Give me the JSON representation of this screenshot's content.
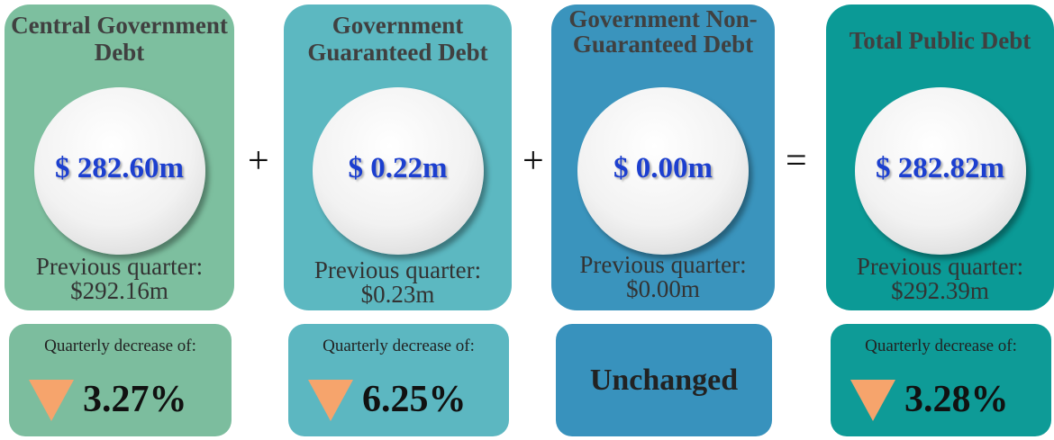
{
  "cards": [
    {
      "title": "Central Government Debt",
      "amount": "$ 282.60m",
      "previous_label": "Previous quarter:",
      "previous": "$292.16m",
      "change_label": "Quarterly decrease of:",
      "change": "3.27%"
    },
    {
      "title": "Government Guaranteed Debt",
      "amount": "$ 0.22m",
      "previous_label": "Previous quarter:",
      "previous": "$0.23m",
      "change_label": "Quarterly decrease of:",
      "change": "6.25%"
    },
    {
      "title": "Government Non-Guaranteed Debt",
      "amount": "$ 0.00m",
      "previous_label": "Previous quarter:",
      "previous": "$0.00m",
      "change": "Unchanged"
    },
    {
      "title": "Total Public Debt",
      "amount": "$ 282.82m",
      "previous_label": "Previous quarter:",
      "previous": "$292.39m",
      "change_label": "Quarterly decrease of:",
      "change": "3.28%"
    }
  ],
  "operators": [
    "+",
    "+",
    "="
  ]
}
